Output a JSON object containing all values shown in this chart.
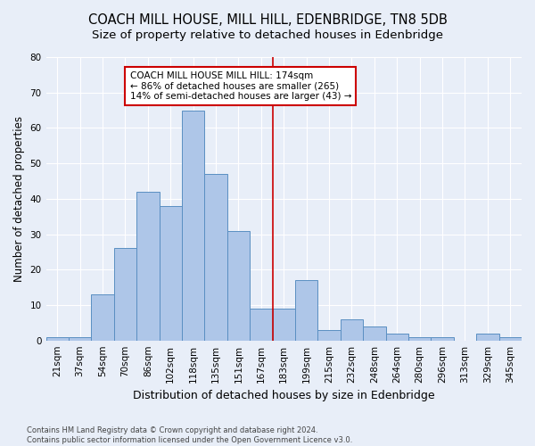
{
  "title": "COACH MILL HOUSE, MILL HILL, EDENBRIDGE, TN8 5DB",
  "subtitle": "Size of property relative to detached houses in Edenbridge",
  "xlabel": "Distribution of detached houses by size in Edenbridge",
  "ylabel": "Number of detached properties",
  "categories": [
    "21sqm",
    "37sqm",
    "54sqm",
    "70sqm",
    "86sqm",
    "102sqm",
    "118sqm",
    "135sqm",
    "151sqm",
    "167sqm",
    "183sqm",
    "199sqm",
    "215sqm",
    "232sqm",
    "248sqm",
    "264sqm",
    "280sqm",
    "296sqm",
    "313sqm",
    "329sqm",
    "345sqm"
  ],
  "values": [
    1,
    1,
    13,
    26,
    42,
    38,
    65,
    47,
    31,
    9,
    9,
    17,
    3,
    6,
    4,
    2,
    1,
    1,
    0,
    2,
    1
  ],
  "bar_color": "#aec6e8",
  "bar_edge_color": "#5a8fc2",
  "ylim": [
    0,
    80
  ],
  "yticks": [
    0,
    10,
    20,
    30,
    40,
    50,
    60,
    70,
    80
  ],
  "property_line_x": 9.5,
  "annotation_line1": "COACH MILL HOUSE MILL HILL: 174sqm",
  "annotation_line2": "← 86% of detached houses are smaller (265)",
  "annotation_line3": "14% of semi-detached houses are larger (43) →",
  "annotation_box_color": "#ffffff",
  "annotation_border_color": "#cc0000",
  "vline_color": "#cc0000",
  "footer1": "Contains HM Land Registry data © Crown copyright and database right 2024.",
  "footer2": "Contains public sector information licensed under the Open Government Licence v3.0.",
  "bg_color": "#e8eef8",
  "title_fontsize": 10.5,
  "subtitle_fontsize": 9.5,
  "tick_fontsize": 7.5,
  "xlabel_fontsize": 9,
  "ylabel_fontsize": 8.5,
  "annotation_fontsize": 7.5
}
